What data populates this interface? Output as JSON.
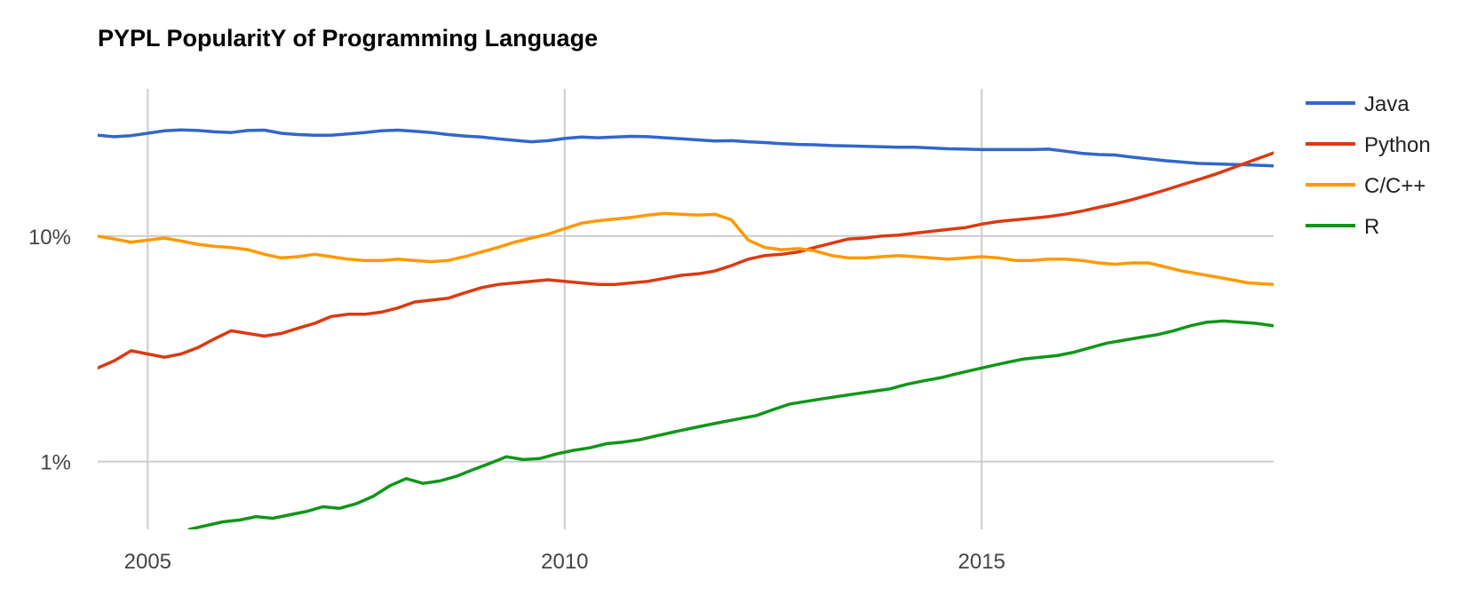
{
  "chart_data": {
    "type": "line",
    "title": "PYPL PopularitY of Programming Language",
    "yscale": "log",
    "ylim": [
      0.5,
      45
    ],
    "xlim": [
      2004.4,
      2018.5
    ],
    "y_ticks": [
      {
        "value": 1,
        "label": "1%"
      },
      {
        "value": 10,
        "label": "10%"
      }
    ],
    "x_ticks": [
      {
        "value": 2005,
        "label": "2005"
      },
      {
        "value": 2010,
        "label": "2010"
      },
      {
        "value": 2015,
        "label": "2015"
      }
    ],
    "grid": true,
    "legend_position": "right",
    "series": [
      {
        "name": "Java",
        "color": "#3366cc",
        "x": [
          2004.4,
          2004.6,
          2004.8,
          2005.0,
          2005.2,
          2005.4,
          2005.6,
          2005.8,
          2006.0,
          2006.2,
          2006.4,
          2006.6,
          2006.8,
          2007.0,
          2007.2,
          2007.4,
          2007.6,
          2007.8,
          2008.0,
          2008.2,
          2008.4,
          2008.6,
          2008.8,
          2009.0,
          2009.2,
          2009.4,
          2009.6,
          2009.8,
          2010.0,
          2010.2,
          2010.4,
          2010.6,
          2010.8,
          2011.0,
          2011.2,
          2011.4,
          2011.6,
          2011.8,
          2012.0,
          2012.2,
          2012.4,
          2012.6,
          2012.8,
          2013.0,
          2013.2,
          2013.4,
          2013.6,
          2013.8,
          2014.0,
          2014.2,
          2014.4,
          2014.6,
          2014.8,
          2015.0,
          2015.2,
          2015.4,
          2015.6,
          2015.8,
          2016.0,
          2016.2,
          2016.4,
          2016.6,
          2016.8,
          2017.0,
          2017.2,
          2017.4,
          2017.6,
          2017.8,
          2018.0,
          2018.2,
          2018.5
        ],
        "values": [
          28.0,
          27.6,
          27.9,
          28.6,
          29.3,
          29.6,
          29.4,
          29.0,
          28.8,
          29.4,
          29.5,
          28.6,
          28.2,
          28.0,
          28.0,
          28.4,
          28.8,
          29.3,
          29.5,
          29.2,
          28.8,
          28.2,
          27.8,
          27.5,
          27.0,
          26.6,
          26.2,
          26.5,
          27.1,
          27.5,
          27.3,
          27.5,
          27.7,
          27.6,
          27.3,
          27.0,
          26.7,
          26.4,
          26.5,
          26.2,
          26.0,
          25.7,
          25.5,
          25.4,
          25.2,
          25.1,
          25.0,
          24.9,
          24.8,
          24.8,
          24.6,
          24.4,
          24.3,
          24.2,
          24.2,
          24.2,
          24.2,
          24.3,
          23.8,
          23.3,
          23.0,
          22.9,
          22.4,
          22.0,
          21.6,
          21.3,
          21.0,
          20.9,
          20.8,
          20.7,
          20.5
        ]
      },
      {
        "name": "Python",
        "color": "#dc3912",
        "x": [
          2004.4,
          2004.6,
          2004.8,
          2005.0,
          2005.2,
          2005.4,
          2005.6,
          2005.8,
          2006.0,
          2006.2,
          2006.4,
          2006.6,
          2006.8,
          2007.0,
          2007.2,
          2007.4,
          2007.6,
          2007.8,
          2008.0,
          2008.2,
          2008.4,
          2008.6,
          2008.8,
          2009.0,
          2009.2,
          2009.4,
          2009.6,
          2009.8,
          2010.0,
          2010.2,
          2010.4,
          2010.6,
          2010.8,
          2011.0,
          2011.2,
          2011.4,
          2011.6,
          2011.8,
          2012.0,
          2012.2,
          2012.4,
          2012.6,
          2012.8,
          2013.0,
          2013.2,
          2013.4,
          2013.6,
          2013.8,
          2014.0,
          2014.2,
          2014.4,
          2014.6,
          2014.8,
          2015.0,
          2015.2,
          2015.4,
          2015.6,
          2015.8,
          2016.0,
          2016.2,
          2016.4,
          2016.6,
          2016.8,
          2017.0,
          2017.2,
          2017.4,
          2017.6,
          2017.8,
          2018.0,
          2018.2,
          2018.5
        ],
        "values": [
          2.6,
          2.8,
          3.1,
          3.0,
          2.9,
          3.0,
          3.2,
          3.5,
          3.8,
          3.7,
          3.6,
          3.7,
          3.9,
          4.1,
          4.4,
          4.5,
          4.5,
          4.6,
          4.8,
          5.1,
          5.2,
          5.3,
          5.6,
          5.9,
          6.1,
          6.2,
          6.3,
          6.4,
          6.3,
          6.2,
          6.1,
          6.1,
          6.2,
          6.3,
          6.5,
          6.7,
          6.8,
          7.0,
          7.4,
          7.9,
          8.2,
          8.3,
          8.5,
          8.9,
          9.3,
          9.7,
          9.8,
          10.0,
          10.1,
          10.3,
          10.5,
          10.7,
          10.9,
          11.3,
          11.6,
          11.8,
          12.0,
          12.2,
          12.5,
          12.9,
          13.4,
          13.9,
          14.5,
          15.2,
          16.0,
          16.9,
          17.8,
          18.8,
          20.0,
          21.3,
          23.4
        ]
      },
      {
        "name": "C/C++",
        "color": "#ff9900",
        "x": [
          2004.4,
          2004.6,
          2004.8,
          2005.0,
          2005.2,
          2005.4,
          2005.6,
          2005.8,
          2006.0,
          2006.2,
          2006.4,
          2006.6,
          2006.8,
          2007.0,
          2007.2,
          2007.4,
          2007.6,
          2007.8,
          2008.0,
          2008.2,
          2008.4,
          2008.6,
          2008.8,
          2009.0,
          2009.2,
          2009.4,
          2009.6,
          2009.8,
          2010.0,
          2010.2,
          2010.4,
          2010.6,
          2010.8,
          2011.0,
          2011.2,
          2011.4,
          2011.6,
          2011.8,
          2012.0,
          2012.2,
          2012.4,
          2012.6,
          2012.8,
          2013.0,
          2013.2,
          2013.4,
          2013.6,
          2013.8,
          2014.0,
          2014.2,
          2014.4,
          2014.6,
          2014.8,
          2015.0,
          2015.2,
          2015.4,
          2015.6,
          2015.8,
          2016.0,
          2016.2,
          2016.4,
          2016.6,
          2016.8,
          2017.0,
          2017.2,
          2017.4,
          2017.6,
          2017.8,
          2018.0,
          2018.2,
          2018.5
        ],
        "values": [
          10.0,
          9.7,
          9.4,
          9.6,
          9.8,
          9.5,
          9.2,
          9.0,
          8.9,
          8.7,
          8.3,
          8.0,
          8.1,
          8.3,
          8.1,
          7.9,
          7.8,
          7.8,
          7.9,
          7.8,
          7.7,
          7.8,
          8.1,
          8.5,
          8.9,
          9.4,
          9.8,
          10.2,
          10.8,
          11.4,
          11.7,
          11.9,
          12.1,
          12.4,
          12.6,
          12.5,
          12.4,
          12.5,
          11.8,
          9.6,
          8.9,
          8.7,
          8.8,
          8.6,
          8.2,
          8.0,
          8.0,
          8.1,
          8.2,
          8.1,
          8.0,
          7.9,
          8.0,
          8.1,
          8.0,
          7.8,
          7.8,
          7.9,
          7.9,
          7.8,
          7.6,
          7.5,
          7.6,
          7.6,
          7.3,
          7.0,
          6.8,
          6.6,
          6.4,
          6.2,
          6.1
        ]
      },
      {
        "name": "R",
        "color": "#109618",
        "x": [
          2005.5,
          2005.7,
          2005.9,
          2006.1,
          2006.3,
          2006.5,
          2006.7,
          2006.9,
          2007.1,
          2007.3,
          2007.5,
          2007.7,
          2007.9,
          2008.1,
          2008.3,
          2008.5,
          2008.7,
          2008.9,
          2009.1,
          2009.3,
          2009.5,
          2009.7,
          2009.9,
          2010.1,
          2010.3,
          2010.5,
          2010.7,
          2010.9,
          2011.1,
          2011.3,
          2011.5,
          2011.7,
          2011.9,
          2012.1,
          2012.3,
          2012.5,
          2012.7,
          2012.9,
          2013.1,
          2013.3,
          2013.5,
          2013.7,
          2013.9,
          2014.1,
          2014.3,
          2014.5,
          2014.7,
          2014.9,
          2015.1,
          2015.3,
          2015.5,
          2015.7,
          2015.9,
          2016.1,
          2016.3,
          2016.5,
          2016.7,
          2016.9,
          2017.1,
          2017.3,
          2017.5,
          2017.7,
          2017.9,
          2018.1,
          2018.3,
          2018.5
        ],
        "values": [
          0.5,
          0.52,
          0.54,
          0.55,
          0.57,
          0.56,
          0.58,
          0.6,
          0.63,
          0.62,
          0.65,
          0.7,
          0.78,
          0.84,
          0.8,
          0.82,
          0.86,
          0.92,
          0.98,
          1.05,
          1.02,
          1.03,
          1.08,
          1.12,
          1.15,
          1.2,
          1.22,
          1.25,
          1.3,
          1.35,
          1.4,
          1.45,
          1.5,
          1.55,
          1.6,
          1.7,
          1.8,
          1.85,
          1.9,
          1.95,
          2.0,
          2.05,
          2.1,
          2.2,
          2.28,
          2.35,
          2.45,
          2.55,
          2.65,
          2.75,
          2.85,
          2.9,
          2.95,
          3.05,
          3.2,
          3.35,
          3.45,
          3.55,
          3.65,
          3.8,
          4.0,
          4.15,
          4.2,
          4.15,
          4.1,
          4.0
        ]
      }
    ]
  }
}
